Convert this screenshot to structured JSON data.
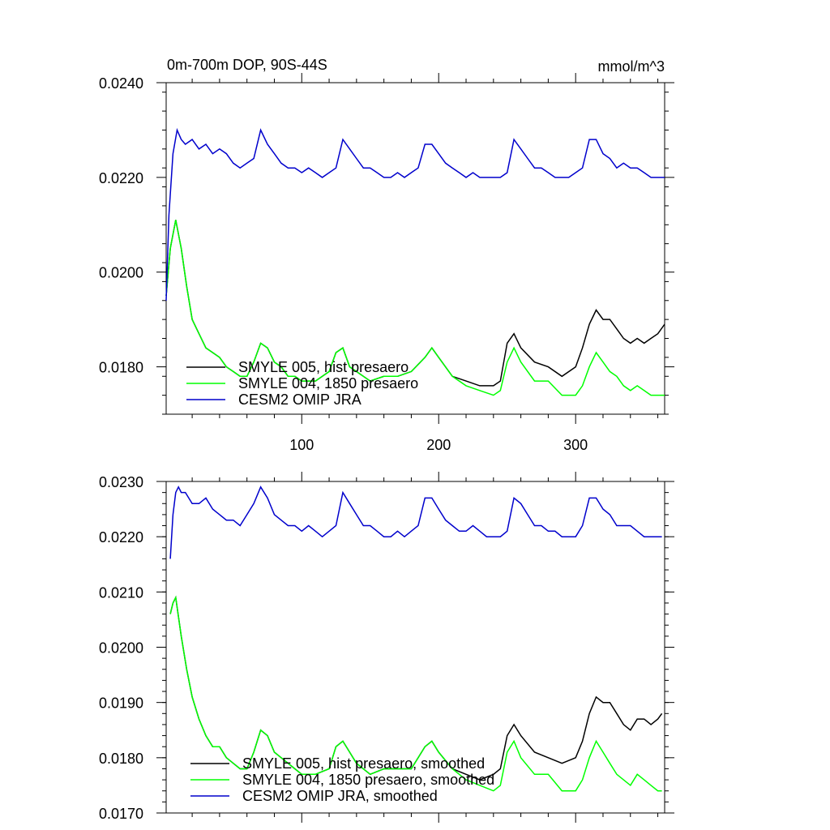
{
  "chart_data": [
    {
      "type": "line",
      "title": "0m-700m DOP, 90S-44S",
      "units": "mmol/m^3",
      "xlim": [
        1,
        365
      ],
      "ylim": [
        0.017,
        0.024
      ],
      "xticks": [
        100,
        200,
        300
      ],
      "xtick_labels": [
        "100",
        "200",
        "300"
      ],
      "yticks": [
        0.018,
        0.02,
        0.022,
        0.024
      ],
      "ytick_labels": [
        "0.0180",
        "0.0200",
        "0.0220",
        "0.0240"
      ],
      "legend_position": "bottom-left",
      "series": [
        {
          "name": "SMYLE 005, hist presaero",
          "color": "#000000",
          "x": [
            1,
            4,
            8,
            12,
            16,
            20,
            25,
            30,
            35,
            40,
            45,
            50,
            55,
            60,
            65,
            70,
            75,
            80,
            85,
            90,
            95,
            100,
            110,
            120,
            125,
            130,
            135,
            140,
            150,
            160,
            170,
            180,
            190,
            195,
            200,
            210,
            220,
            230,
            240,
            245,
            250,
            255,
            260,
            270,
            280,
            290,
            300,
            305,
            310,
            315,
            320,
            325,
            330,
            335,
            340,
            345,
            350,
            355,
            360,
            365
          ],
          "y": [
            0.0195,
            0.0205,
            0.0211,
            0.0205,
            0.0197,
            0.019,
            0.0187,
            0.0184,
            0.0183,
            0.0182,
            0.018,
            0.0179,
            0.0178,
            0.0178,
            0.0181,
            0.0185,
            0.0184,
            0.0181,
            0.018,
            0.0178,
            0.0178,
            0.0177,
            0.0177,
            0.0179,
            0.0183,
            0.0184,
            0.018,
            0.0179,
            0.0177,
            0.0178,
            0.0178,
            0.0179,
            0.0182,
            0.0184,
            0.0182,
            0.0178,
            0.0177,
            0.0176,
            0.0176,
            0.0177,
            0.0185,
            0.0187,
            0.0184,
            0.0181,
            0.018,
            0.0178,
            0.018,
            0.0184,
            0.0189,
            0.0192,
            0.019,
            0.019,
            0.0188,
            0.0186,
            0.0185,
            0.0186,
            0.0185,
            0.0186,
            0.0187,
            0.0189
          ]
        },
        {
          "name": "SMYLE 004, 1850 presaero",
          "color": "#00ff00",
          "x": [
            1,
            4,
            8,
            12,
            16,
            20,
            25,
            30,
            35,
            40,
            45,
            50,
            55,
            60,
            65,
            70,
            75,
            80,
            85,
            90,
            95,
            100,
            110,
            120,
            125,
            130,
            135,
            140,
            150,
            160,
            170,
            180,
            190,
            195,
            200,
            210,
            220,
            230,
            240,
            245,
            250,
            255,
            260,
            270,
            280,
            290,
            300,
            305,
            310,
            315,
            320,
            325,
            330,
            335,
            340,
            345,
            350,
            355,
            360,
            365
          ],
          "y": [
            0.0195,
            0.0205,
            0.0211,
            0.0205,
            0.0197,
            0.019,
            0.0187,
            0.0184,
            0.0183,
            0.0182,
            0.018,
            0.0179,
            0.0178,
            0.0178,
            0.0181,
            0.0185,
            0.0184,
            0.0181,
            0.018,
            0.0178,
            0.0178,
            0.0177,
            0.0177,
            0.0179,
            0.0183,
            0.0184,
            0.018,
            0.0179,
            0.0177,
            0.0178,
            0.0178,
            0.0179,
            0.0182,
            0.0184,
            0.0182,
            0.0178,
            0.0176,
            0.0175,
            0.0174,
            0.0175,
            0.0181,
            0.0184,
            0.0181,
            0.0177,
            0.0177,
            0.0174,
            0.0174,
            0.0176,
            0.018,
            0.0183,
            0.0181,
            0.0179,
            0.0178,
            0.0176,
            0.0175,
            0.0176,
            0.0175,
            0.0174,
            0.0174,
            0.0174
          ]
        },
        {
          "name": "CESM2 OMIP JRA",
          "color": "#0000cc",
          "x": [
            1,
            3,
            6,
            9,
            12,
            15,
            20,
            25,
            30,
            35,
            40,
            45,
            50,
            55,
            60,
            65,
            70,
            75,
            80,
            85,
            90,
            95,
            100,
            105,
            110,
            115,
            120,
            125,
            130,
            135,
            140,
            145,
            150,
            155,
            160,
            165,
            170,
            175,
            180,
            185,
            190,
            195,
            200,
            205,
            210,
            215,
            220,
            225,
            230,
            235,
            240,
            245,
            250,
            255,
            260,
            265,
            270,
            275,
            280,
            285,
            290,
            295,
            300,
            305,
            310,
            315,
            320,
            325,
            330,
            335,
            340,
            345,
            350,
            355,
            360,
            365
          ],
          "y": [
            0.0194,
            0.0212,
            0.0225,
            0.023,
            0.0228,
            0.0227,
            0.0228,
            0.0226,
            0.0227,
            0.0225,
            0.0226,
            0.0225,
            0.0223,
            0.0222,
            0.0223,
            0.0224,
            0.023,
            0.0227,
            0.0225,
            0.0223,
            0.0222,
            0.0222,
            0.0221,
            0.0222,
            0.0221,
            0.022,
            0.0221,
            0.0222,
            0.0228,
            0.0226,
            0.0224,
            0.0222,
            0.0222,
            0.0221,
            0.022,
            0.022,
            0.0221,
            0.022,
            0.0221,
            0.0222,
            0.0227,
            0.0227,
            0.0225,
            0.0223,
            0.0222,
            0.0221,
            0.022,
            0.0221,
            0.022,
            0.022,
            0.022,
            0.022,
            0.0221,
            0.0228,
            0.0226,
            0.0224,
            0.0222,
            0.0222,
            0.0221,
            0.022,
            0.022,
            0.022,
            0.0221,
            0.0222,
            0.0228,
            0.0228,
            0.0225,
            0.0224,
            0.0222,
            0.0223,
            0.0222,
            0.0222,
            0.0221,
            0.022,
            0.022,
            0.022
          ]
        }
      ]
    },
    {
      "type": "line",
      "title": "",
      "units": "",
      "xlim": [
        1,
        365
      ],
      "ylim": [
        0.017,
        0.023
      ],
      "xticks": [
        100,
        200,
        300
      ],
      "xtick_labels": [
        "",
        "",
        ""
      ],
      "yticks": [
        0.017,
        0.018,
        0.019,
        0.02,
        0.021,
        0.022,
        0.023
      ],
      "ytick_labels": [
        "0.0170",
        "0.0180",
        "0.0190",
        "0.0200",
        "0.0210",
        "0.0220",
        "0.0230"
      ],
      "legend_position": "bottom-left",
      "series": [
        {
          "name": "SMYLE 005, hist presaero, smoothed",
          "color": "#000000",
          "x": [
            4,
            6,
            8,
            12,
            16,
            20,
            25,
            30,
            35,
            40,
            45,
            50,
            55,
            60,
            65,
            70,
            75,
            80,
            85,
            90,
            95,
            100,
            110,
            120,
            125,
            130,
            135,
            140,
            150,
            160,
            170,
            180,
            190,
            195,
            200,
            210,
            220,
            230,
            240,
            245,
            250,
            255,
            260,
            270,
            280,
            290,
            300,
            305,
            310,
            315,
            320,
            325,
            330,
            335,
            340,
            345,
            350,
            355,
            360,
            363
          ],
          "y": [
            0.0206,
            0.0208,
            0.0209,
            0.0202,
            0.0196,
            0.0191,
            0.0187,
            0.0184,
            0.0182,
            0.0182,
            0.018,
            0.0179,
            0.0178,
            0.0178,
            0.0181,
            0.0185,
            0.0184,
            0.0181,
            0.018,
            0.0179,
            0.0178,
            0.0177,
            0.0177,
            0.0178,
            0.0182,
            0.0183,
            0.0181,
            0.0179,
            0.0177,
            0.0178,
            0.0178,
            0.0178,
            0.0182,
            0.0183,
            0.0181,
            0.0178,
            0.0177,
            0.0176,
            0.0177,
            0.0178,
            0.0184,
            0.0186,
            0.0184,
            0.0181,
            0.018,
            0.0179,
            0.018,
            0.0183,
            0.0188,
            0.0191,
            0.019,
            0.019,
            0.0188,
            0.0186,
            0.0185,
            0.0187,
            0.0187,
            0.0186,
            0.0187,
            0.0188
          ]
        },
        {
          "name": "SMYLE 004, 1850 presaero, smoothed",
          "color": "#00ff00",
          "x": [
            4,
            6,
            8,
            12,
            16,
            20,
            25,
            30,
            35,
            40,
            45,
            50,
            55,
            60,
            65,
            70,
            75,
            80,
            85,
            90,
            95,
            100,
            110,
            120,
            125,
            130,
            135,
            140,
            150,
            160,
            170,
            180,
            190,
            195,
            200,
            210,
            220,
            230,
            240,
            245,
            250,
            255,
            260,
            270,
            280,
            290,
            300,
            305,
            310,
            315,
            320,
            325,
            330,
            335,
            340,
            345,
            350,
            355,
            360,
            363
          ],
          "y": [
            0.0206,
            0.0208,
            0.0209,
            0.0202,
            0.0196,
            0.0191,
            0.0187,
            0.0184,
            0.0182,
            0.0182,
            0.018,
            0.0179,
            0.0178,
            0.0178,
            0.0181,
            0.0185,
            0.0184,
            0.0181,
            0.018,
            0.0179,
            0.0178,
            0.0177,
            0.0177,
            0.0178,
            0.0182,
            0.0183,
            0.0181,
            0.0179,
            0.0177,
            0.0178,
            0.0178,
            0.0178,
            0.0182,
            0.0183,
            0.0181,
            0.0178,
            0.0176,
            0.0175,
            0.0174,
            0.0175,
            0.0181,
            0.0183,
            0.018,
            0.0177,
            0.0177,
            0.0174,
            0.0174,
            0.0176,
            0.018,
            0.0183,
            0.0181,
            0.0179,
            0.0177,
            0.0176,
            0.0175,
            0.0177,
            0.0176,
            0.0175,
            0.0174,
            0.0174
          ]
        },
        {
          "name": "CESM2 OMIP JRA, smoothed",
          "color": "#0000cc",
          "x": [
            4,
            6,
            8,
            10,
            12,
            15,
            20,
            25,
            30,
            35,
            40,
            45,
            50,
            55,
            60,
            65,
            70,
            75,
            80,
            85,
            90,
            95,
            100,
            105,
            110,
            115,
            120,
            125,
            130,
            135,
            140,
            145,
            150,
            155,
            160,
            165,
            170,
            175,
            180,
            185,
            190,
            195,
            200,
            205,
            210,
            215,
            220,
            225,
            230,
            235,
            240,
            245,
            250,
            255,
            260,
            265,
            270,
            275,
            280,
            285,
            290,
            295,
            300,
            305,
            310,
            315,
            320,
            325,
            330,
            335,
            340,
            345,
            350,
            355,
            360,
            363
          ],
          "y": [
            0.0216,
            0.0224,
            0.0228,
            0.0229,
            0.0228,
            0.0228,
            0.0226,
            0.0226,
            0.0227,
            0.0225,
            0.0224,
            0.0223,
            0.0223,
            0.0222,
            0.0224,
            0.0226,
            0.0229,
            0.0227,
            0.0224,
            0.0223,
            0.0222,
            0.0222,
            0.0221,
            0.0222,
            0.0221,
            0.022,
            0.0221,
            0.0222,
            0.0228,
            0.0226,
            0.0224,
            0.0222,
            0.0222,
            0.0221,
            0.022,
            0.022,
            0.0221,
            0.022,
            0.0221,
            0.0222,
            0.0227,
            0.0227,
            0.0225,
            0.0223,
            0.0222,
            0.0221,
            0.0221,
            0.0222,
            0.0221,
            0.022,
            0.022,
            0.022,
            0.0221,
            0.0227,
            0.0226,
            0.0224,
            0.0222,
            0.0222,
            0.0221,
            0.0221,
            0.022,
            0.022,
            0.022,
            0.0222,
            0.0227,
            0.0227,
            0.0225,
            0.0224,
            0.0222,
            0.0222,
            0.0222,
            0.0221,
            0.022,
            0.022,
            0.022,
            0.022
          ]
        }
      ]
    }
  ]
}
